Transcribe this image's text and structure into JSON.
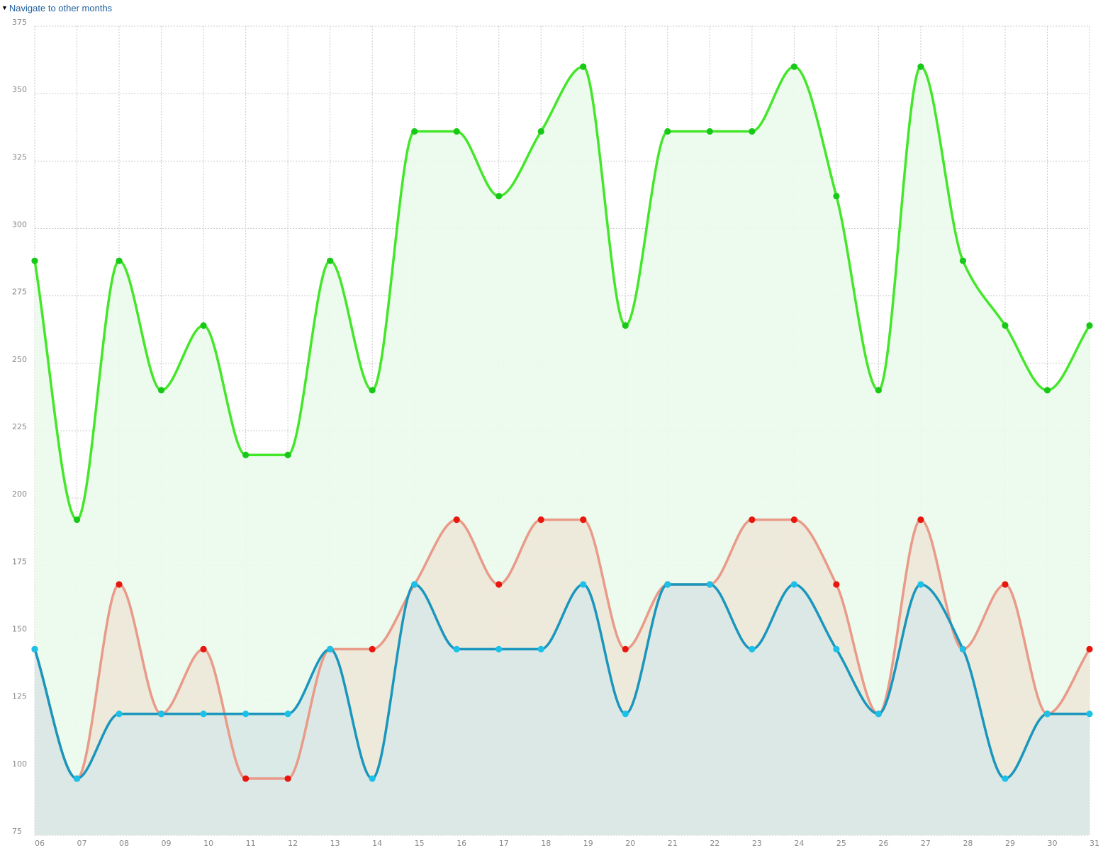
{
  "nav": {
    "label": "Navigate to other months",
    "arrow_icon": "triangle-down-icon"
  },
  "chart_data": {
    "type": "area",
    "categories": [
      "06",
      "07",
      "08",
      "09",
      "10",
      "11",
      "12",
      "13",
      "14",
      "15",
      "16",
      "17",
      "18",
      "19",
      "20",
      "21",
      "22",
      "23",
      "24",
      "25",
      "26",
      "27",
      "28",
      "29",
      "30",
      "31"
    ],
    "ylim": [
      75,
      375
    ],
    "yticks": [
      75,
      100,
      125,
      150,
      175,
      200,
      225,
      250,
      275,
      300,
      325,
      350,
      375
    ],
    "grid": true,
    "curve": "smooth",
    "series": [
      {
        "color": "#44e62a",
        "point_color": "#17c817",
        "fill": "#eafbec",
        "values": [
          288,
          192,
          288,
          240,
          264,
          216,
          216,
          288,
          240,
          336,
          336,
          312,
          336,
          360,
          264,
          336,
          336,
          336,
          360,
          312,
          240,
          360,
          288,
          264,
          240,
          264
        ]
      },
      {
        "color": "#e99a88",
        "point_color": "#e8170e",
        "fill": "#ede7d8",
        "values": [
          144,
          96,
          168,
          120,
          144,
          96,
          96,
          144,
          144,
          168,
          192,
          168,
          192,
          192,
          144,
          168,
          168,
          192,
          192,
          168,
          120,
          192,
          144,
          168,
          120,
          144
        ]
      },
      {
        "color": "#1a96bd",
        "point_color": "#1bc1e8",
        "fill": "#d8e8e6",
        "values": [
          144,
          96,
          120,
          120,
          120,
          120,
          120,
          144,
          96,
          168,
          144,
          144,
          144,
          168,
          120,
          168,
          168,
          144,
          168,
          144,
          120,
          168,
          144,
          96,
          120,
          120
        ]
      }
    ]
  }
}
